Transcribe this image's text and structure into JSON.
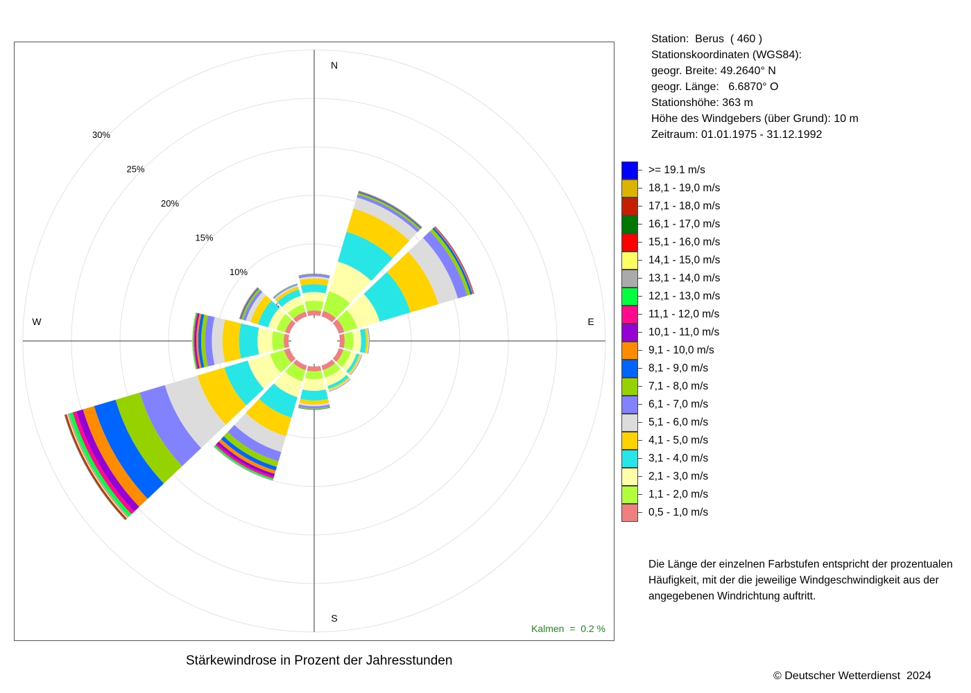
{
  "station": {
    "line1": "Station:  Berus  ( 460 )",
    "line2": "Stationskoordinaten (WGS84):",
    "line3": "geogr. Breite: 49.2640° N",
    "line4": "geogr. Länge:   6.6870° O",
    "line5": "Stationshöhe: 363 m",
    "line6": "Höhe des Windgebers (über Grund): 10 m",
    "line7": "Zeitraum: 01.01.1975 - 31.12.1992"
  },
  "legend": [
    {
      "label": ">= 19.1 m/s",
      "color": "#0000ff"
    },
    {
      "label": "18,1 - 19,0 m/s",
      "color": "#dcb400"
    },
    {
      "label": "17,1 - 18,0 m/s",
      "color": "#c81e00"
    },
    {
      "label": "16,1 - 17,0 m/s",
      "color": "#007800"
    },
    {
      "label": "15,1 - 16,0 m/s",
      "color": "#ff0000"
    },
    {
      "label": "14,1 - 15,0 m/s",
      "color": "#ffff64"
    },
    {
      "label": "13,1 - 14,0 m/s",
      "color": "#aaaaaa"
    },
    {
      "label": "12,1 - 13,0 m/s",
      "color": "#00ff3c"
    },
    {
      "label": "11,1 - 12,0 m/s",
      "color": "#ff0a8c"
    },
    {
      "label": "10,1 - 11,0 m/s",
      "color": "#9600d2"
    },
    {
      "label": "9,1 - 10,0 m/s",
      "color": "#ff8c00"
    },
    {
      "label": "8,1 - 9,0 m/s",
      "color": "#0064ff"
    },
    {
      "label": "7,1 - 8,0 m/s",
      "color": "#96d200"
    },
    {
      "label": "6,1 - 7,0 m/s",
      "color": "#8282ff"
    },
    {
      "label": "5,1 - 6,0 m/s",
      "color": "#dcdcdc"
    },
    {
      "label": "4,1 - 5,0 m/s",
      "color": "#ffd200"
    },
    {
      "label": "3,1 - 4,0 m/s",
      "color": "#28e6e6"
    },
    {
      "label": "2,1 - 3,0 m/s",
      "color": "#ffffaa"
    },
    {
      "label": "1,1 - 2,0 m/s",
      "color": "#b4ff3c"
    },
    {
      "label": "0,5 - 1,0 m/s",
      "color": "#f08080"
    }
  ],
  "note": "Die Länge der einzelnen Farbstufen entspricht der prozentualen Häufigkeit, mit der die jeweilige Windgeschwindigkeit aus der angegebenen Windrichtung auftritt.",
  "caption": "Stärkewindrose in Prozent der Jahresstunden",
  "copyright": "© Deutscher Wetterdienst  2024",
  "calm_text": "Kalmen  =  0.2 %",
  "chart_data": {
    "type": "wind-rose",
    "title": "Stärkewindrose in Prozent der Jahresstunden",
    "directions": [
      0,
      30,
      60,
      90,
      120,
      150,
      180,
      210,
      240,
      270,
      300,
      330
    ],
    "compass_labels": {
      "N": "N",
      "E": "E",
      "S": "S",
      "W": "W"
    },
    "rings": [
      5,
      10,
      15,
      20,
      25,
      30
    ],
    "ring_labels": [
      "5%",
      "10%",
      "15%",
      "20%",
      "25%",
      "30%"
    ],
    "rmax": 30,
    "calm_percent": 0.2,
    "speed_classes": [
      "0,5 - 1,0 m/s",
      "1,1 - 2,0 m/s",
      "2,1 - 3,0 m/s",
      "3,1 - 4,0 m/s",
      "4,1 - 5,0 m/s",
      "5,1 - 6,0 m/s",
      "6,1 - 7,0 m/s",
      "7,1 - 8,0 m/s",
      "8,1 - 9,0 m/s",
      "9,1 - 10,0 m/s",
      "10,1 - 11,0 m/s",
      "11,1 - 12,0 m/s",
      "12,1 - 13,0 m/s",
      "13,1 - 14,0 m/s",
      "14,1 - 15,0 m/s",
      "15,1 - 16,0 m/s",
      "16,1 - 17,0 m/s",
      "17,1 - 18,0 m/s",
      "18,1 - 19,0 m/s",
      ">= 19.1 m/s"
    ],
    "series": [
      {
        "direction": 0,
        "values": [
          0.5,
          1.0,
          0.9,
          0.8,
          0.6,
          0.2,
          0.2,
          0.05,
          0.03,
          0.02,
          0,
          0,
          0,
          0,
          0,
          0,
          0,
          0,
          0,
          0
        ]
      },
      {
        "direction": 30,
        "values": [
          0.6,
          2.1,
          3.2,
          3.2,
          2.5,
          1.2,
          0.3,
          0.2,
          0.1,
          0.05,
          0.03,
          0.02,
          0.02,
          0,
          0,
          0,
          0,
          0,
          0,
          0
        ]
      },
      {
        "direction": 60,
        "values": [
          0.6,
          1.4,
          2.4,
          3.3,
          3.0,
          2.1,
          1.0,
          0.35,
          0.2,
          0.1,
          0.05,
          0.03,
          0.02,
          0.01,
          0,
          0,
          0,
          0,
          0,
          0
        ]
      },
      {
        "direction": 90,
        "values": [
          0.5,
          0.9,
          0.8,
          0.5,
          0.2,
          0.1,
          0.05,
          0.03,
          0,
          0,
          0,
          0,
          0,
          0,
          0,
          0,
          0,
          0,
          0,
          0
        ]
      },
      {
        "direction": 120,
        "values": [
          0.5,
          0.8,
          0.6,
          0.3,
          0.15,
          0.1,
          0.05,
          0.02,
          0,
          0,
          0,
          0,
          0,
          0,
          0,
          0,
          0,
          0,
          0,
          0
        ]
      },
      {
        "direction": 150,
        "values": [
          0.5,
          0.8,
          0.9,
          0.3,
          0.15,
          0.1,
          0.05,
          0.02,
          0,
          0,
          0,
          0,
          0,
          0,
          0,
          0,
          0,
          0,
          0,
          0
        ]
      },
      {
        "direction": 180,
        "values": [
          0.5,
          0.8,
          1.2,
          1.0,
          0.4,
          0.2,
          0.2,
          0.1,
          0.05,
          0,
          0,
          0,
          0,
          0,
          0,
          0,
          0,
          0,
          0,
          0
        ]
      },
      {
        "direction": 210,
        "values": [
          0.5,
          1.2,
          1.7,
          2.2,
          2.0,
          1.7,
          1.0,
          0.6,
          0.4,
          0.35,
          0.3,
          0.2,
          0.15,
          0.1,
          0,
          0,
          0,
          0,
          0,
          0
        ]
      },
      {
        "direction": 240,
        "values": [
          0.6,
          1.5,
          2.4,
          2.5,
          2.9,
          3.5,
          2.7,
          2.6,
          2.3,
          1.2,
          0.7,
          0.4,
          0.35,
          0.2,
          0.1,
          0.1,
          0.05,
          0.05,
          0.02,
          0.02
        ]
      },
      {
        "direction": 270,
        "values": [
          0.5,
          1.2,
          1.5,
          1.9,
          1.7,
          1.1,
          0.7,
          0.4,
          0.3,
          0.2,
          0.15,
          0.1,
          0.1,
          0.05,
          0.05,
          0,
          0,
          0,
          0,
          0
        ]
      },
      {
        "direction": 300,
        "values": [
          0.5,
          0.9,
          0.9,
          1.1,
          0.8,
          0.5,
          0.3,
          0.2,
          0.1,
          0.05,
          0.03,
          0.02,
          0.01,
          0,
          0,
          0,
          0,
          0,
          0,
          0
        ]
      },
      {
        "direction": 330,
        "values": [
          0.5,
          0.8,
          0.9,
          0.7,
          0.3,
          0.15,
          0.1,
          0.05,
          0.03,
          0,
          0,
          0,
          0,
          0,
          0,
          0,
          0,
          0,
          0,
          0
        ]
      }
    ]
  }
}
